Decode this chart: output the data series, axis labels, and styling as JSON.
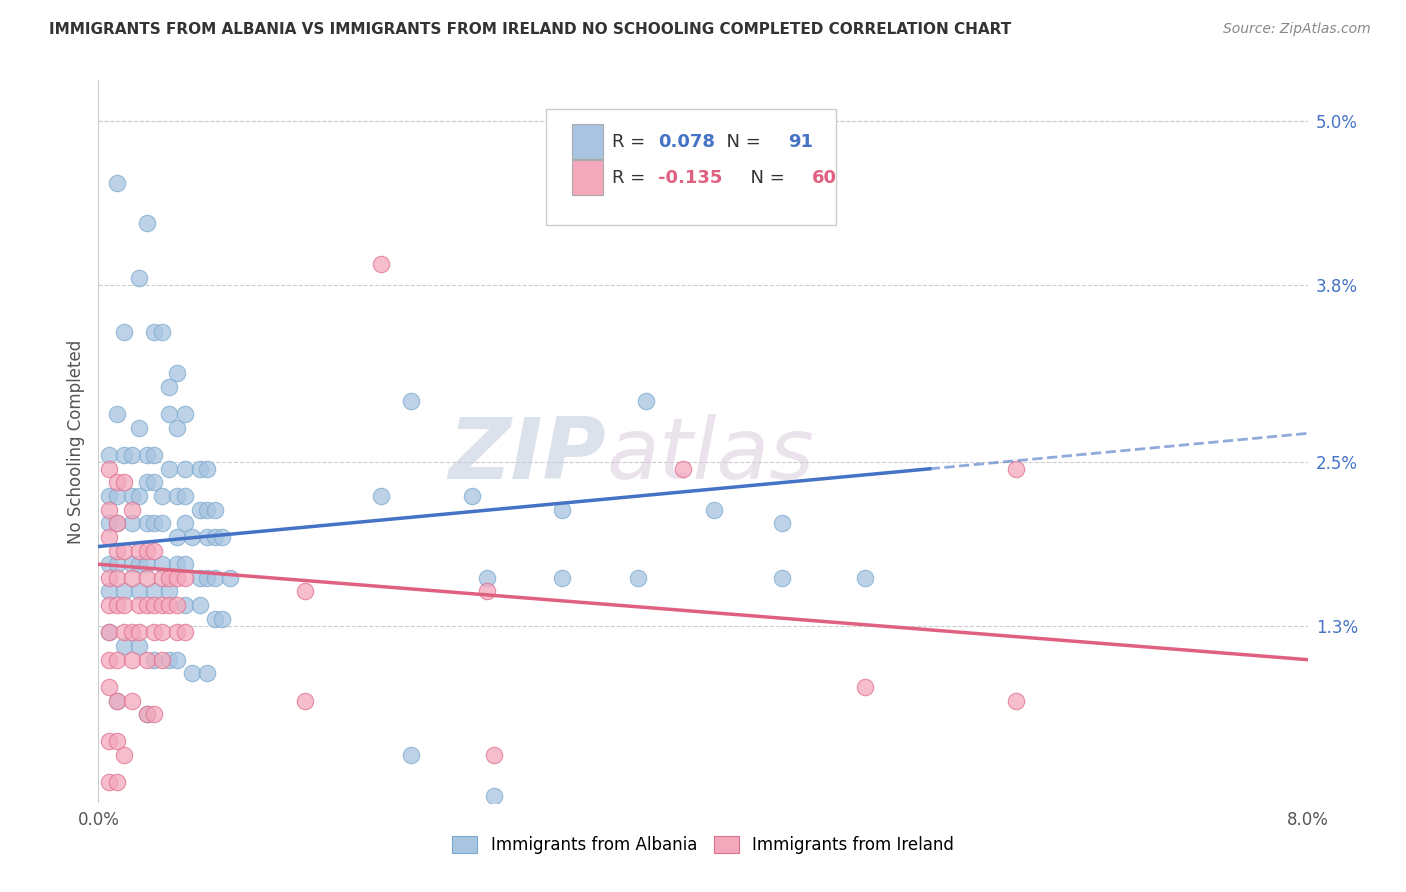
{
  "title": "IMMIGRANTS FROM ALBANIA VS IMMIGRANTS FROM IRELAND NO SCHOOLING COMPLETED CORRELATION CHART",
  "source": "Source: ZipAtlas.com",
  "ylabel": "No Schooling Completed",
  "right_yticks": [
    "5.0%",
    "3.8%",
    "2.5%",
    "1.3%"
  ],
  "right_ytick_vals": [
    5.0,
    3.8,
    2.5,
    1.3
  ],
  "xmin": 0.0,
  "xmax": 8.0,
  "ymin": 0.0,
  "ymax": 5.3,
  "albania_color": "#a8c4e0",
  "albania_edge_color": "#7aaad0",
  "ireland_color": "#f4a8bc",
  "ireland_edge_color": "#e07090",
  "albania_R": 0.078,
  "albania_N": 91,
  "ireland_R": -0.135,
  "ireland_N": 60,
  "legend_blue_color": "#4472c4",
  "legend_pink_color": "#e06080",
  "albania_line_color": "#4472c4",
  "ireland_line_color": "#e06080",
  "albania_line_start_x": 0.0,
  "albania_line_start_y": 1.88,
  "albania_line_end_x": 5.5,
  "albania_line_end_y": 2.45,
  "albania_dash_start_x": 5.5,
  "albania_dash_start_y": 2.45,
  "albania_dash_end_x": 8.0,
  "albania_dash_end_y": 2.71,
  "ireland_line_start_x": 0.0,
  "ireland_line_start_y": 1.75,
  "ireland_line_end_x": 8.0,
  "ireland_line_end_y": 1.05,
  "albania_scatter": [
    [
      0.12,
      4.55
    ],
    [
      0.32,
      4.25
    ],
    [
      0.27,
      3.85
    ],
    [
      0.17,
      3.45
    ],
    [
      0.37,
      3.45
    ],
    [
      0.42,
      3.45
    ],
    [
      0.52,
      3.15
    ],
    [
      0.47,
      3.05
    ],
    [
      0.12,
      2.85
    ],
    [
      0.27,
      2.75
    ],
    [
      0.47,
      2.85
    ],
    [
      0.52,
      2.75
    ],
    [
      0.57,
      2.85
    ],
    [
      0.07,
      2.55
    ],
    [
      0.17,
      2.55
    ],
    [
      0.22,
      2.55
    ],
    [
      0.32,
      2.55
    ],
    [
      0.37,
      2.55
    ],
    [
      0.47,
      2.45
    ],
    [
      0.57,
      2.45
    ],
    [
      0.67,
      2.45
    ],
    [
      0.72,
      2.45
    ],
    [
      0.07,
      2.25
    ],
    [
      0.12,
      2.25
    ],
    [
      0.22,
      2.25
    ],
    [
      0.27,
      2.25
    ],
    [
      0.32,
      2.35
    ],
    [
      0.37,
      2.35
    ],
    [
      0.42,
      2.25
    ],
    [
      0.52,
      2.25
    ],
    [
      0.57,
      2.25
    ],
    [
      0.67,
      2.15
    ],
    [
      0.72,
      2.15
    ],
    [
      0.77,
      2.15
    ],
    [
      0.07,
      2.05
    ],
    [
      0.12,
      2.05
    ],
    [
      0.22,
      2.05
    ],
    [
      0.32,
      2.05
    ],
    [
      0.37,
      2.05
    ],
    [
      0.42,
      2.05
    ],
    [
      0.52,
      1.95
    ],
    [
      0.57,
      2.05
    ],
    [
      0.62,
      1.95
    ],
    [
      0.72,
      1.95
    ],
    [
      0.77,
      1.95
    ],
    [
      0.82,
      1.95
    ],
    [
      0.07,
      1.75
    ],
    [
      0.12,
      1.75
    ],
    [
      0.22,
      1.75
    ],
    [
      0.27,
      1.75
    ],
    [
      0.32,
      1.75
    ],
    [
      0.42,
      1.75
    ],
    [
      0.52,
      1.75
    ],
    [
      0.57,
      1.75
    ],
    [
      0.67,
      1.65
    ],
    [
      0.72,
      1.65
    ],
    [
      0.77,
      1.65
    ],
    [
      0.87,
      1.65
    ],
    [
      0.07,
      1.55
    ],
    [
      0.17,
      1.55
    ],
    [
      0.27,
      1.55
    ],
    [
      0.37,
      1.55
    ],
    [
      0.47,
      1.55
    ],
    [
      0.57,
      1.45
    ],
    [
      0.67,
      1.45
    ],
    [
      0.77,
      1.35
    ],
    [
      0.82,
      1.35
    ],
    [
      0.07,
      1.25
    ],
    [
      0.17,
      1.15
    ],
    [
      0.27,
      1.15
    ],
    [
      0.37,
      1.05
    ],
    [
      0.47,
      1.05
    ],
    [
      0.52,
      1.05
    ],
    [
      0.62,
      0.95
    ],
    [
      0.72,
      0.95
    ],
    [
      0.12,
      0.75
    ],
    [
      0.32,
      0.65
    ],
    [
      2.07,
      2.95
    ],
    [
      3.62,
      2.95
    ],
    [
      1.87,
      2.25
    ],
    [
      2.47,
      2.25
    ],
    [
      3.07,
      2.15
    ],
    [
      4.07,
      2.15
    ],
    [
      4.52,
      2.05
    ],
    [
      2.57,
      1.65
    ],
    [
      3.07,
      1.65
    ],
    [
      3.57,
      1.65
    ],
    [
      4.52,
      1.65
    ],
    [
      5.07,
      1.65
    ],
    [
      2.07,
      0.35
    ],
    [
      2.62,
      0.05
    ]
  ],
  "ireland_scatter": [
    [
      0.07,
      2.45
    ],
    [
      0.12,
      2.35
    ],
    [
      0.17,
      2.35
    ],
    [
      0.07,
      2.15
    ],
    [
      0.12,
      2.05
    ],
    [
      0.22,
      2.15
    ],
    [
      0.07,
      1.95
    ],
    [
      0.12,
      1.85
    ],
    [
      0.17,
      1.85
    ],
    [
      0.27,
      1.85
    ],
    [
      0.32,
      1.85
    ],
    [
      0.37,
      1.85
    ],
    [
      0.07,
      1.65
    ],
    [
      0.12,
      1.65
    ],
    [
      0.22,
      1.65
    ],
    [
      0.32,
      1.65
    ],
    [
      0.42,
      1.65
    ],
    [
      0.47,
      1.65
    ],
    [
      0.52,
      1.65
    ],
    [
      0.57,
      1.65
    ],
    [
      0.07,
      1.45
    ],
    [
      0.12,
      1.45
    ],
    [
      0.17,
      1.45
    ],
    [
      0.27,
      1.45
    ],
    [
      0.32,
      1.45
    ],
    [
      0.37,
      1.45
    ],
    [
      0.42,
      1.45
    ],
    [
      0.47,
      1.45
    ],
    [
      0.52,
      1.45
    ],
    [
      0.07,
      1.25
    ],
    [
      0.17,
      1.25
    ],
    [
      0.22,
      1.25
    ],
    [
      0.27,
      1.25
    ],
    [
      0.37,
      1.25
    ],
    [
      0.42,
      1.25
    ],
    [
      0.52,
      1.25
    ],
    [
      0.57,
      1.25
    ],
    [
      0.07,
      1.05
    ],
    [
      0.12,
      1.05
    ],
    [
      0.22,
      1.05
    ],
    [
      0.32,
      1.05
    ],
    [
      0.42,
      1.05
    ],
    [
      0.07,
      0.85
    ],
    [
      0.12,
      0.75
    ],
    [
      0.22,
      0.75
    ],
    [
      0.32,
      0.65
    ],
    [
      0.37,
      0.65
    ],
    [
      0.07,
      0.45
    ],
    [
      0.12,
      0.45
    ],
    [
      0.17,
      0.35
    ],
    [
      0.07,
      0.15
    ],
    [
      0.12,
      0.15
    ],
    [
      1.87,
      3.95
    ],
    [
      3.87,
      2.45
    ],
    [
      6.07,
      2.45
    ],
    [
      5.07,
      0.85
    ],
    [
      6.07,
      0.75
    ],
    [
      1.37,
      1.55
    ],
    [
      2.57,
      1.55
    ],
    [
      1.37,
      0.75
    ],
    [
      2.62,
      0.35
    ]
  ]
}
